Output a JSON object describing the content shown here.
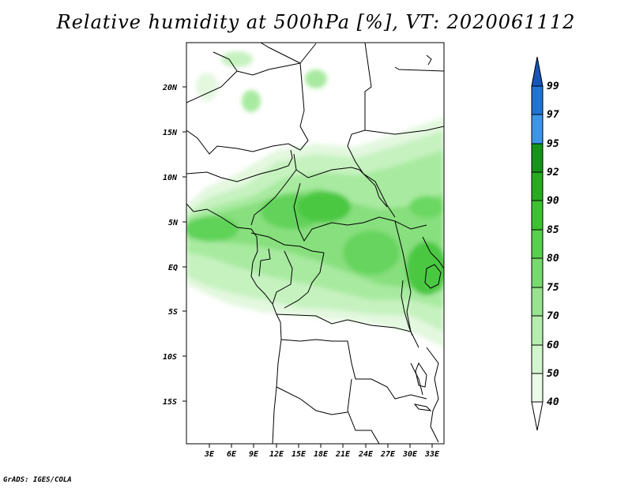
{
  "title": "Relative humidity at 500hPa [%], VT: 2020061112",
  "credit": "GrADS: IGES/COLA",
  "map": {
    "lat_labels": [
      "20N",
      "15N",
      "10N",
      "5N",
      "EQ",
      "5S",
      "10S",
      "15S"
    ],
    "lon_labels": [
      "3E",
      "6E",
      "9E",
      "12E",
      "15E",
      "18E",
      "21E",
      "24E",
      "27E",
      "30E",
      "33E"
    ],
    "colors": {
      "land_outline": "#000000",
      "background": "#ffffff"
    }
  },
  "colorbar": {
    "levels": [
      "40",
      "50",
      "60",
      "70",
      "75",
      "80",
      "85",
      "90",
      "92",
      "95",
      "97",
      "99"
    ],
    "colors": [
      "#eafbe7",
      "#d2f5cd",
      "#b6edaf",
      "#97e38f",
      "#78d96e",
      "#59cf4f",
      "#3cc231",
      "#28ab21",
      "#14941a",
      "#3d95e8",
      "#2173d4",
      "#1655b8"
    ]
  }
}
